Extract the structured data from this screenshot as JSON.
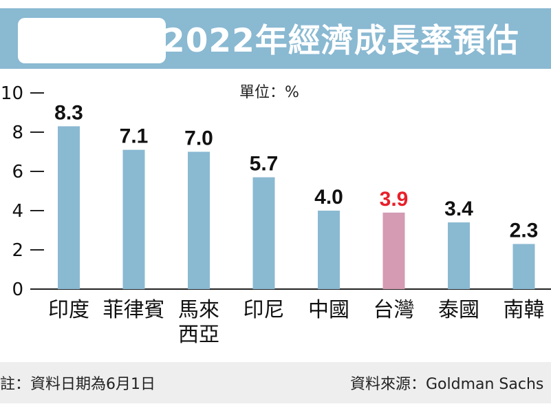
{
  "chart_data": {
    "type": "bar",
    "title": "2022年經濟成長率預估",
    "unit": "單位：%",
    "categories": [
      [
        "印度"
      ],
      [
        "菲律賓"
      ],
      [
        "馬來",
        "西亞"
      ],
      [
        "印尼"
      ],
      [
        "中國"
      ],
      [
        "台灣"
      ],
      [
        "泰國"
      ],
      [
        "南韓"
      ]
    ],
    "values": [
      8.3,
      7.1,
      7.0,
      5.7,
      4.0,
      3.9,
      3.4,
      2.3
    ],
    "value_labels": [
      "8.3",
      "7.1",
      "7.0",
      "5.7",
      "4.0",
      "3.9",
      "3.4",
      "2.3"
    ],
    "highlight_index": 5,
    "y_ticks": [
      "0",
      "2",
      "4",
      "6",
      "8",
      "10"
    ],
    "ylim": [
      0,
      10
    ],
    "grid": false,
    "colors": {
      "bar": "#8ab9d2",
      "bar_highlight": "#d49bb3",
      "value_label": "#111111",
      "value_label_highlight": "#e8202a",
      "banner": "#8ab9d2",
      "footer": "#eeeeee"
    }
  },
  "footer": {
    "note": "註：資料日期為6月1日",
    "source": "資料來源：Goldman Sachs"
  }
}
